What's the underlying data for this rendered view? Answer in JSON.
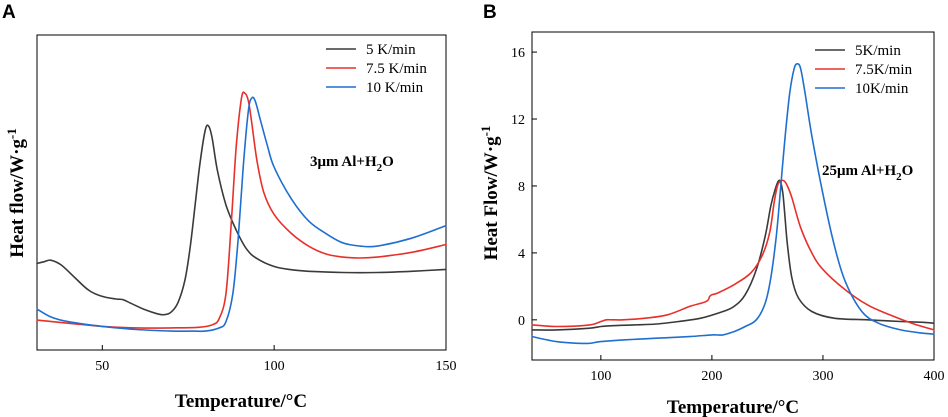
{
  "chart_data": [
    {
      "panel": "A",
      "type": "line",
      "xlabel": "Temperature/°C",
      "ylabel": "Heat flow/W·g-1",
      "ylabel_main": "Heat flow/W·g",
      "ylabel_sup": "-1",
      "xlim": [
        31,
        150
      ],
      "ylim": [
        0,
        100
      ],
      "xticks": [
        50,
        100,
        150
      ],
      "yticks": [],
      "annotation": {
        "prefix": "3μm Al+H",
        "sub": "2",
        "suffix": "O"
      },
      "series": [
        {
          "name": "5 K/min",
          "color": "#3a3a3a",
          "x": [
            31,
            33,
            35,
            38,
            42,
            46,
            50,
            54,
            56,
            58,
            62,
            66,
            68,
            70,
            72,
            74,
            75.5,
            77,
            78.5,
            80,
            81,
            82,
            83.5,
            86,
            89,
            92,
            95,
            100,
            105,
            110,
            120,
            130,
            140,
            150
          ],
          "y": [
            27.5,
            28,
            28.5,
            27,
            23,
            19,
            17,
            16.2,
            16,
            15,
            13,
            11.5,
            11.2,
            12,
            15,
            22,
            32,
            46,
            60,
            70,
            71,
            67,
            57,
            46,
            38,
            32,
            29,
            26.5,
            25.5,
            25,
            24.6,
            24.6,
            25,
            25.6
          ]
        },
        {
          "name": "7.5 K/min",
          "color": "#e8302a",
          "x": [
            31,
            40,
            50,
            60,
            70,
            78,
            82,
            84,
            86,
            87.5,
            89,
            90.5,
            91.5,
            92.5,
            93.5,
            95,
            97,
            100,
            105,
            110,
            115,
            120,
            125,
            130,
            140,
            150
          ],
          "y": [
            9.5,
            8.5,
            7.5,
            7,
            7,
            7.2,
            8,
            10,
            18,
            40,
            65,
            80,
            81.5,
            79,
            72,
            60,
            50,
            43,
            37,
            33,
            30.5,
            29.5,
            29.2,
            29.5,
            31,
            33.5
          ]
        },
        {
          "name": "10 K/min",
          "color": "#1f6fd0",
          "x": [
            31,
            35,
            40,
            50,
            60,
            70,
            76,
            80,
            84,
            86,
            88,
            89.5,
            91,
            92.5,
            93.5,
            94.5,
            96,
            98,
            100,
            105,
            110,
            115,
            120,
            125,
            130,
            140,
            150
          ],
          "y": [
            13,
            10.5,
            9,
            7.5,
            6.5,
            6,
            6,
            6,
            7,
            9,
            18,
            35,
            58,
            76,
            80,
            79,
            73,
            65,
            58,
            48,
            41,
            37,
            34,
            33,
            33,
            35.5,
            39.5
          ]
        }
      ]
    },
    {
      "panel": "B",
      "type": "line",
      "xlabel": "Temperature/°C",
      "ylabel": "Heat Flow/W·g-1",
      "ylabel_main": "Heat Flow/W·g",
      "ylabel_sup": "-1",
      "xlim": [
        38,
        400
      ],
      "ylim": [
        -2.4,
        17.2
      ],
      "xticks": [
        100,
        200,
        300,
        400
      ],
      "yticks": [
        0,
        4,
        8,
        12,
        16
      ],
      "annotation": {
        "prefix": "25μm Al+H",
        "sub": "2",
        "suffix": "O"
      },
      "series": [
        {
          "name": "5K/min",
          "color": "#3a3a3a",
          "x": [
            38,
            60,
            90,
            100,
            110,
            130,
            150,
            170,
            190,
            210,
            220,
            230,
            240,
            248,
            253,
            257,
            260,
            262,
            264,
            266,
            268,
            272,
            278,
            290,
            310,
            340,
            370,
            390,
            400
          ],
          "y": [
            -0.6,
            -0.6,
            -0.5,
            -0.4,
            -0.35,
            -0.3,
            -0.25,
            -0.1,
            0.1,
            0.5,
            0.8,
            1.5,
            3,
            5,
            6.8,
            7.8,
            8.3,
            8.2,
            7.5,
            6,
            4.5,
            2.5,
            1.3,
            0.5,
            0.1,
            0,
            -0.1,
            -0.15,
            -0.2
          ]
        },
        {
          "name": "7.5K/min",
          "color": "#e8302a",
          "x": [
            38,
            60,
            90,
            100,
            105,
            110,
            120,
            140,
            160,
            180,
            195,
            198,
            200,
            205,
            220,
            235,
            245,
            252,
            256,
            259,
            262,
            265,
            268,
            272,
            280,
            290,
            300,
            320,
            340,
            360,
            380,
            400
          ],
          "y": [
            -0.3,
            -0.4,
            -0.3,
            -0.1,
            0,
            0,
            0,
            0.1,
            0.3,
            0.8,
            1.1,
            1.4,
            1.5,
            1.6,
            2.1,
            2.8,
            3.8,
            5.2,
            7,
            8,
            8.3,
            8.3,
            8,
            7.3,
            5.5,
            4,
            3,
            1.8,
            0.9,
            0.3,
            -0.2,
            -0.6
          ]
        },
        {
          "name": "10K/min",
          "color": "#1f6fd0",
          "x": [
            38,
            60,
            80,
            90,
            100,
            120,
            150,
            180,
            200,
            210,
            220,
            230,
            240,
            248,
            253,
            258,
            262,
            266,
            270,
            274,
            277,
            280,
            284,
            290,
            300,
            310,
            320,
            335,
            350,
            370,
            390,
            400
          ],
          "y": [
            -1,
            -1.3,
            -1.4,
            -1.4,
            -1.3,
            -1.2,
            -1.1,
            -1,
            -0.9,
            -0.9,
            -0.7,
            -0.4,
            0,
            1,
            2.5,
            5,
            8,
            11,
            13.5,
            15,
            15.3,
            15,
            13.5,
            11,
            7.5,
            4.5,
            2.3,
            0.5,
            -0.2,
            -0.6,
            -0.8,
            -0.85
          ]
        }
      ]
    }
  ]
}
